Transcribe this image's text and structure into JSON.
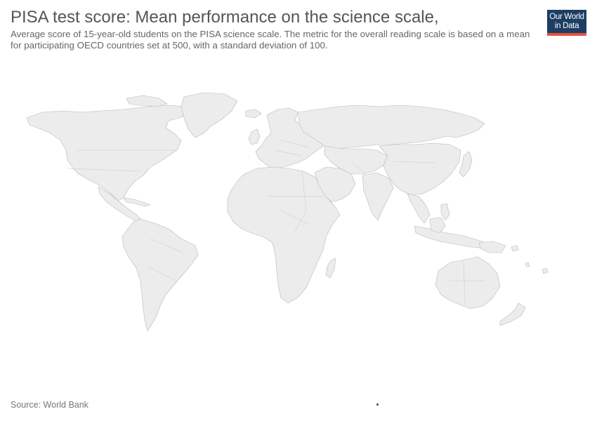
{
  "header": {
    "title": "PISA test score: Mean performance on the science scale,",
    "subtitle": "Average score of 15-year-old students on the PISA science scale. The metric for the overall reading scale is based on a mean for participating OECD countries set at 500, with a standard deviation of 100."
  },
  "logo": {
    "line1": "Our World",
    "line2": "in Data",
    "bg_color": "#1d3d63",
    "accent_color": "#e5533a"
  },
  "map": {
    "land_color": "#ececec",
    "border_color": "#b9b9b9",
    "has_data": false
  },
  "footer": {
    "source": "Source: World Bank"
  }
}
